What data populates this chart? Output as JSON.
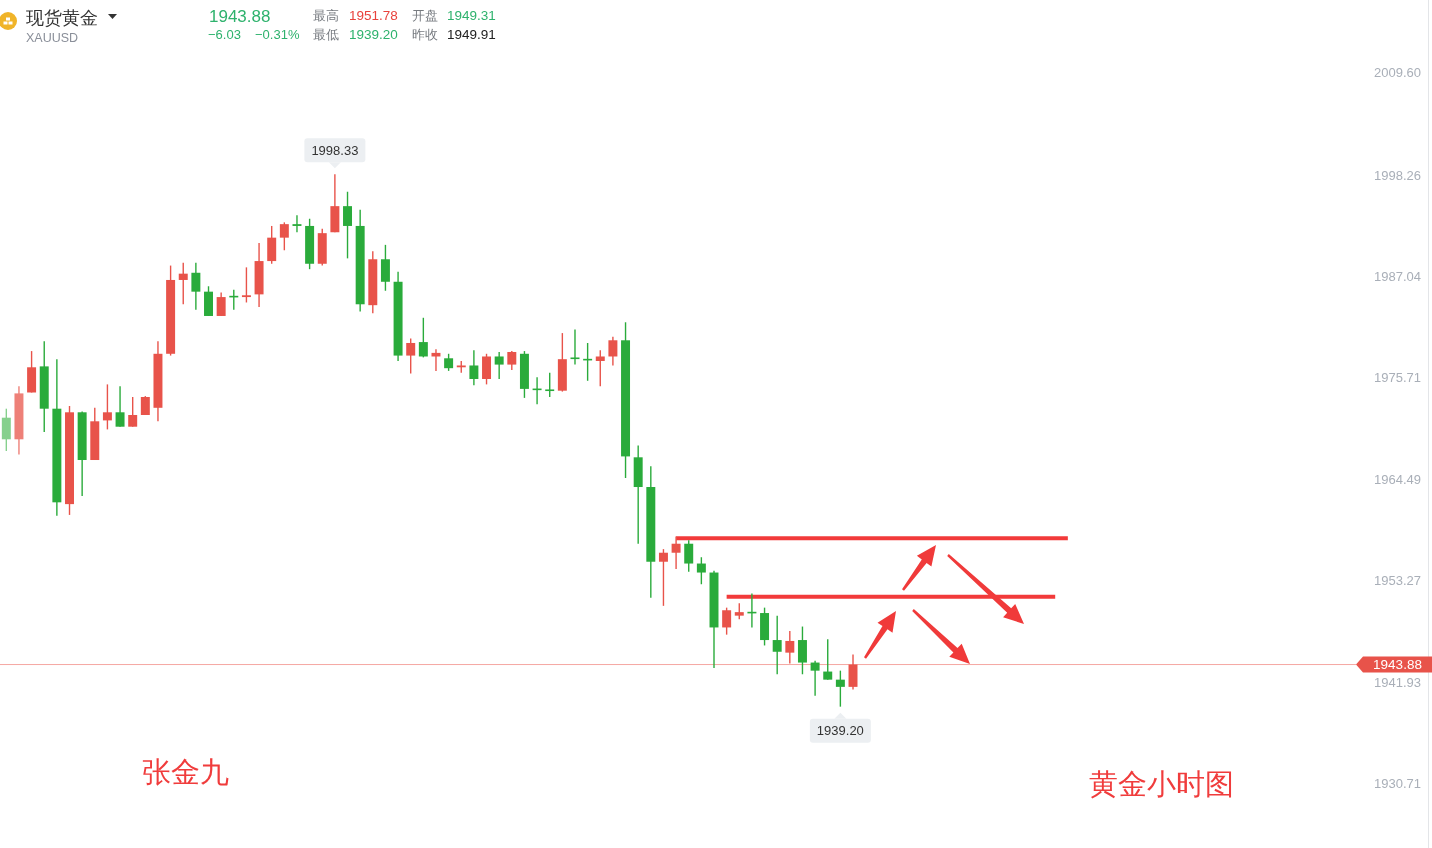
{
  "chart_data": {
    "type": "candlestick",
    "title": "现货黄金",
    "subtitle": "XAUUSD",
    "categories": [
      null,
      null,
      null,
      null,
      null,
      null,
      null,
      null,
      null,
      null,
      null,
      null,
      null,
      null,
      null,
      null,
      null,
      null,
      null,
      null,
      null,
      null,
      null,
      null,
      null,
      null,
      null,
      null,
      null,
      null,
      null,
      null,
      null,
      null,
      null,
      null,
      null,
      null,
      null,
      null,
      null,
      null,
      null,
      null,
      null,
      null,
      null,
      null,
      null,
      null,
      null,
      null,
      null,
      null,
      null,
      null,
      null,
      null,
      null,
      null,
      null,
      null,
      null,
      null,
      null,
      null,
      null,
      null,
      null,
      null,
      null,
      null,
      null,
      null,
      null,
      null,
      null,
      null,
      null,
      null,
      null,
      null,
      null,
      null,
      null,
      null,
      null,
      null,
      null,
      null,
      null,
      null,
      null,
      null,
      null,
      null,
      null,
      null,
      null,
      null,
      null,
      null,
      null,
      null,
      null,
      null,
      null,
      null,
      null,
      null,
      null,
      null,
      null
    ],
    "ohlc": [
      [
        1971.3,
        1972.3,
        1967.6,
        1968.9
      ],
      [
        1968.9,
        1974.8,
        1967.2,
        1974.0
      ],
      [
        1974.1,
        1978.7,
        1974.1,
        1976.9
      ],
      [
        1977.0,
        1979.8,
        1969.7,
        1972.3
      ],
      [
        1972.3,
        1977.8,
        1960.4,
        1961.9
      ],
      [
        1961.7,
        1972.6,
        1960.5,
        1971.9
      ],
      [
        1971.9,
        1972.0,
        1962.6,
        1966.6
      ],
      [
        1966.6,
        1972.4,
        1966.6,
        1970.9
      ],
      [
        1971.0,
        1975.0,
        1970.0,
        1971.9
      ],
      [
        1971.9,
        1974.8,
        1970.3,
        1970.3
      ],
      [
        1970.3,
        1973.6,
        1970.3,
        1971.6
      ],
      [
        1971.6,
        1973.7,
        1971.6,
        1973.6
      ],
      [
        1972.4,
        1979.8,
        1970.9,
        1978.4
      ],
      [
        1978.4,
        1988.2,
        1978.2,
        1986.6
      ],
      [
        1986.6,
        1988.5,
        1983.9,
        1987.3
      ],
      [
        1987.4,
        1988.5,
        1983.3,
        1985.3
      ],
      [
        1985.3,
        1985.9,
        1982.6,
        1982.6
      ],
      [
        1982.6,
        1985.2,
        1982.6,
        1984.7
      ],
      [
        1984.8,
        1985.5,
        1983.3,
        1984.7
      ],
      [
        1984.7,
        1988.0,
        1984.1,
        1984.9
      ],
      [
        1985.0,
        1990.7,
        1983.6,
        1988.7
      ],
      [
        1988.7,
        1992.6,
        1988.4,
        1991.3
      ],
      [
        1991.3,
        1993.0,
        1989.9,
        1992.8
      ],
      [
        1992.8,
        1993.8,
        1991.9,
        1992.6
      ],
      [
        1992.6,
        1993.4,
        1987.8,
        1988.4
      ],
      [
        1988.4,
        1992.3,
        1988.2,
        1991.8
      ],
      [
        1991.9,
        1998.33,
        1991.9,
        1994.8
      ],
      [
        1994.8,
        1996.4,
        1989.0,
        1992.6
      ],
      [
        1992.6,
        1994.4,
        1983.1,
        1983.9
      ],
      [
        1983.8,
        1989.8,
        1982.9,
        1988.9
      ],
      [
        1988.9,
        1990.5,
        1985.4,
        1986.4
      ],
      [
        1986.4,
        1987.5,
        1977.6,
        1978.2
      ],
      [
        1978.2,
        1980.1,
        1976.2,
        1979.6
      ],
      [
        1979.7,
        1982.4,
        1978.0,
        1978.1
      ],
      [
        1978.1,
        1978.9,
        1976.5,
        1978.5
      ],
      [
        1977.9,
        1978.4,
        1976.5,
        1976.8
      ],
      [
        1976.9,
        1977.6,
        1976.3,
        1977.1
      ],
      [
        1977.1,
        1978.8,
        1974.9,
        1975.6
      ],
      [
        1975.6,
        1978.4,
        1975.0,
        1978.1
      ],
      [
        1978.1,
        1978.6,
        1975.6,
        1977.2
      ],
      [
        1977.2,
        1978.7,
        1976.6,
        1978.6
      ],
      [
        1978.4,
        1978.7,
        1973.5,
        1974.5
      ],
      [
        1974.5,
        1975.8,
        1972.8,
        1974.4
      ],
      [
        1974.4,
        1976.3,
        1973.6,
        1974.3
      ],
      [
        1974.3,
        1980.7,
        1974.2,
        1977.8
      ],
      [
        1977.9,
        1981.1,
        1977.2,
        1977.9
      ],
      [
        1977.8,
        1979.6,
        1975.4,
        1977.7
      ],
      [
        1977.6,
        1978.8,
        1974.8,
        1978.1
      ],
      [
        1978.1,
        1980.3,
        1977.1,
        1979.9
      ],
      [
        1979.9,
        1981.9,
        1964.6,
        1967.0
      ],
      [
        1966.9,
        1968.2,
        1957.3,
        1963.6
      ],
      [
        1963.6,
        1965.9,
        1951.3,
        1955.3
      ],
      [
        1955.3,
        1956.7,
        1950.4,
        1956.3
      ],
      [
        1956.3,
        1958.1,
        1954.5,
        1957.3
      ],
      [
        1957.3,
        1957.7,
        1954.2,
        1955.1
      ],
      [
        1955.1,
        1955.8,
        1952.8,
        1954.1
      ],
      [
        1954.1,
        1954.3,
        1943.5,
        1948.0
      ],
      [
        1948.0,
        1950.2,
        1947.2,
        1949.91
      ],
      [
        1949.31,
        1950.7,
        1948.9,
        1949.7
      ],
      [
        1949.7,
        1951.78,
        1948.0,
        1949.6
      ],
      [
        1949.6,
        1950.2,
        1946.0,
        1946.6
      ],
      [
        1946.6,
        1949.3,
        1942.8,
        1945.3
      ],
      [
        1945.2,
        1947.6,
        1944.0,
        1946.5
      ],
      [
        1946.6,
        1948.1,
        1942.8,
        1944.1
      ],
      [
        1944.1,
        1944.3,
        1940.4,
        1943.2
      ],
      [
        1943.1,
        1946.7,
        1942.2,
        1942.2
      ],
      [
        1942.2,
        1943.2,
        1939.2,
        1941.4
      ],
      [
        1941.4,
        1945.0,
        1941.1,
        1943.88
      ],
      null,
      null,
      null,
      null,
      null,
      null,
      null,
      null,
      null,
      null,
      null,
      null,
      null,
      null,
      null,
      null,
      null,
      null,
      null,
      null,
      null,
      null,
      null,
      null,
      null,
      null,
      null,
      null,
      null,
      null,
      null,
      null,
      null,
      null,
      null,
      null,
      null,
      null,
      null,
      null,
      null,
      null,
      null,
      null,
      null
    ],
    "colors": [
      "#86d08d",
      "#ee8078",
      "#e8534a",
      "#2aab3b",
      "#2aab3b",
      "#e8534a",
      "#2aab3b",
      "#e8534a",
      "#e8534a",
      "#2aab3b",
      "#e8534a",
      "#e8534a",
      "#e8534a",
      "#e8534a",
      "#e8534a",
      "#2aab3b",
      "#2aab3b",
      "#e8534a",
      "#2aab3b",
      "#e8534a",
      "#e8534a",
      "#e8534a",
      "#e8534a",
      "#2aab3b",
      "#2aab3b",
      "#e8534a",
      "#e8534a",
      "#2aab3b",
      "#2aab3b",
      "#e8534a",
      "#2aab3b",
      "#2aab3b",
      "#e8534a",
      "#2aab3b",
      "#e8534a",
      "#2aab3b",
      "#e8534a",
      "#2aab3b",
      "#e8534a",
      "#2aab3b",
      "#e8534a",
      "#2aab3b",
      "#2aab3b",
      "#2aab3b",
      "#e8534a",
      "#2aab3b",
      "#2aab3b",
      "#e8534a",
      "#e8534a",
      "#2aab3b",
      "#2aab3b",
      "#2aab3b",
      "#e8534a",
      "#e8534a",
      "#2aab3b",
      "#2aab3b",
      "#2aab3b",
      "#e8534a",
      "#e8534a",
      "#2aab3b",
      "#2aab3b",
      "#2aab3b",
      "#e8534a",
      "#2aab3b",
      "#2aab3b",
      "#2aab3b",
      "#2aab3b",
      "#e8534a",
      null,
      null,
      null,
      null,
      null,
      null,
      null,
      null,
      null,
      null,
      null,
      null,
      null,
      null,
      null,
      null,
      null,
      null,
      null,
      null,
      null,
      null,
      null,
      null,
      null,
      null,
      null,
      null,
      null,
      null,
      null,
      null,
      null,
      null,
      null,
      null,
      null,
      null,
      null,
      null,
      null,
      null,
      null,
      null,
      null
    ],
    "series": [
      {
        "type": "line",
        "color": "#f23a3a",
        "values": [
          null,
          null,
          null,
          null,
          null,
          null,
          null,
          null,
          null,
          null,
          null,
          null,
          null,
          null,
          null,
          null,
          null,
          null,
          null,
          null,
          null,
          null,
          null,
          null,
          null,
          null,
          null,
          null,
          null,
          null,
          null,
          null,
          null,
          null,
          null,
          null,
          null,
          null,
          null,
          null,
          null,
          null,
          null,
          null,
          null,
          null,
          null,
          null,
          null,
          null,
          null,
          null,
          null,
          1957.9,
          1957.9,
          1957.9,
          1957.9,
          1957.9,
          1957.9,
          1957.9,
          1957.9,
          1957.9,
          1957.9,
          1957.9,
          1957.9,
          1957.9,
          1957.9,
          1957.9,
          1957.9,
          1957.9,
          1957.9,
          1957.9,
          1957.9,
          1957.9,
          1957.9,
          1957.9,
          1957.9,
          1957.9,
          1957.9,
          1957.9,
          1957.9,
          1957.9,
          1957.9,
          1957.9,
          1957.9,
          null,
          null,
          null,
          null,
          null,
          null,
          null,
          null,
          null,
          null,
          null,
          null,
          null,
          null,
          null,
          null,
          null,
          null,
          null,
          null,
          null,
          null,
          null,
          null,
          null,
          null,
          null,
          null
        ]
      },
      {
        "type": "line",
        "color": "#f23a3a",
        "values": [
          null,
          null,
          null,
          null,
          null,
          null,
          null,
          null,
          null,
          null,
          null,
          null,
          null,
          null,
          null,
          null,
          null,
          null,
          null,
          null,
          null,
          null,
          null,
          null,
          null,
          null,
          null,
          null,
          null,
          null,
          null,
          null,
          null,
          null,
          null,
          null,
          null,
          null,
          null,
          null,
          null,
          null,
          null,
          null,
          null,
          null,
          null,
          null,
          null,
          null,
          null,
          null,
          null,
          null,
          null,
          null,
          null,
          1951.4,
          1951.4,
          1951.4,
          1951.4,
          1951.4,
          1951.4,
          1951.4,
          1951.4,
          1951.4,
          1951.4,
          1951.4,
          1951.4,
          1951.4,
          1951.4,
          1951.4,
          1951.4,
          1951.4,
          1951.4,
          1951.4,
          1951.4,
          1951.4,
          1951.4,
          1951.4,
          1951.4,
          1951.4,
          1951.4,
          1951.4,
          null,
          null,
          null,
          null,
          null,
          null,
          null,
          null,
          null,
          null,
          null,
          null,
          null,
          null,
          null,
          null,
          null,
          null,
          null,
          null,
          null,
          null,
          null,
          null,
          null,
          null,
          null,
          null,
          null
        ]
      }
    ],
    "ylim": [
      1923.5,
      2017.7
    ],
    "yticks": [
      {
        "value": 2009.6,
        "label": "2009.60"
      },
      {
        "value": 1998.26,
        "label": "1998.26"
      },
      {
        "value": 1987.04,
        "label": "1987.04"
      },
      {
        "value": 1975.71,
        "label": "1975.71"
      },
      {
        "value": 1964.49,
        "label": "1964.49"
      },
      {
        "value": 1953.27,
        "label": "1953.27"
      },
      {
        "value": 1941.93,
        "label": "1941.93"
      },
      {
        "value": 1930.71,
        "label": "1930.71"
      }
    ],
    "tick_labels": "y",
    "ref_lines": [
      {
        "axis": "y",
        "value": 1943.88,
        "label": "1943.88",
        "color": "#f5a8a3"
      }
    ],
    "annotations": [
      "1943.88",
      "−6.03",
      "−0.31%",
      "最高",
      "1951.78",
      "最低",
      "1939.20",
      "开盘",
      "1949.31",
      "昨收",
      "1949.91",
      "1998.33",
      "1939.20",
      "张金九",
      "黄金小时图"
    ]
  }
}
